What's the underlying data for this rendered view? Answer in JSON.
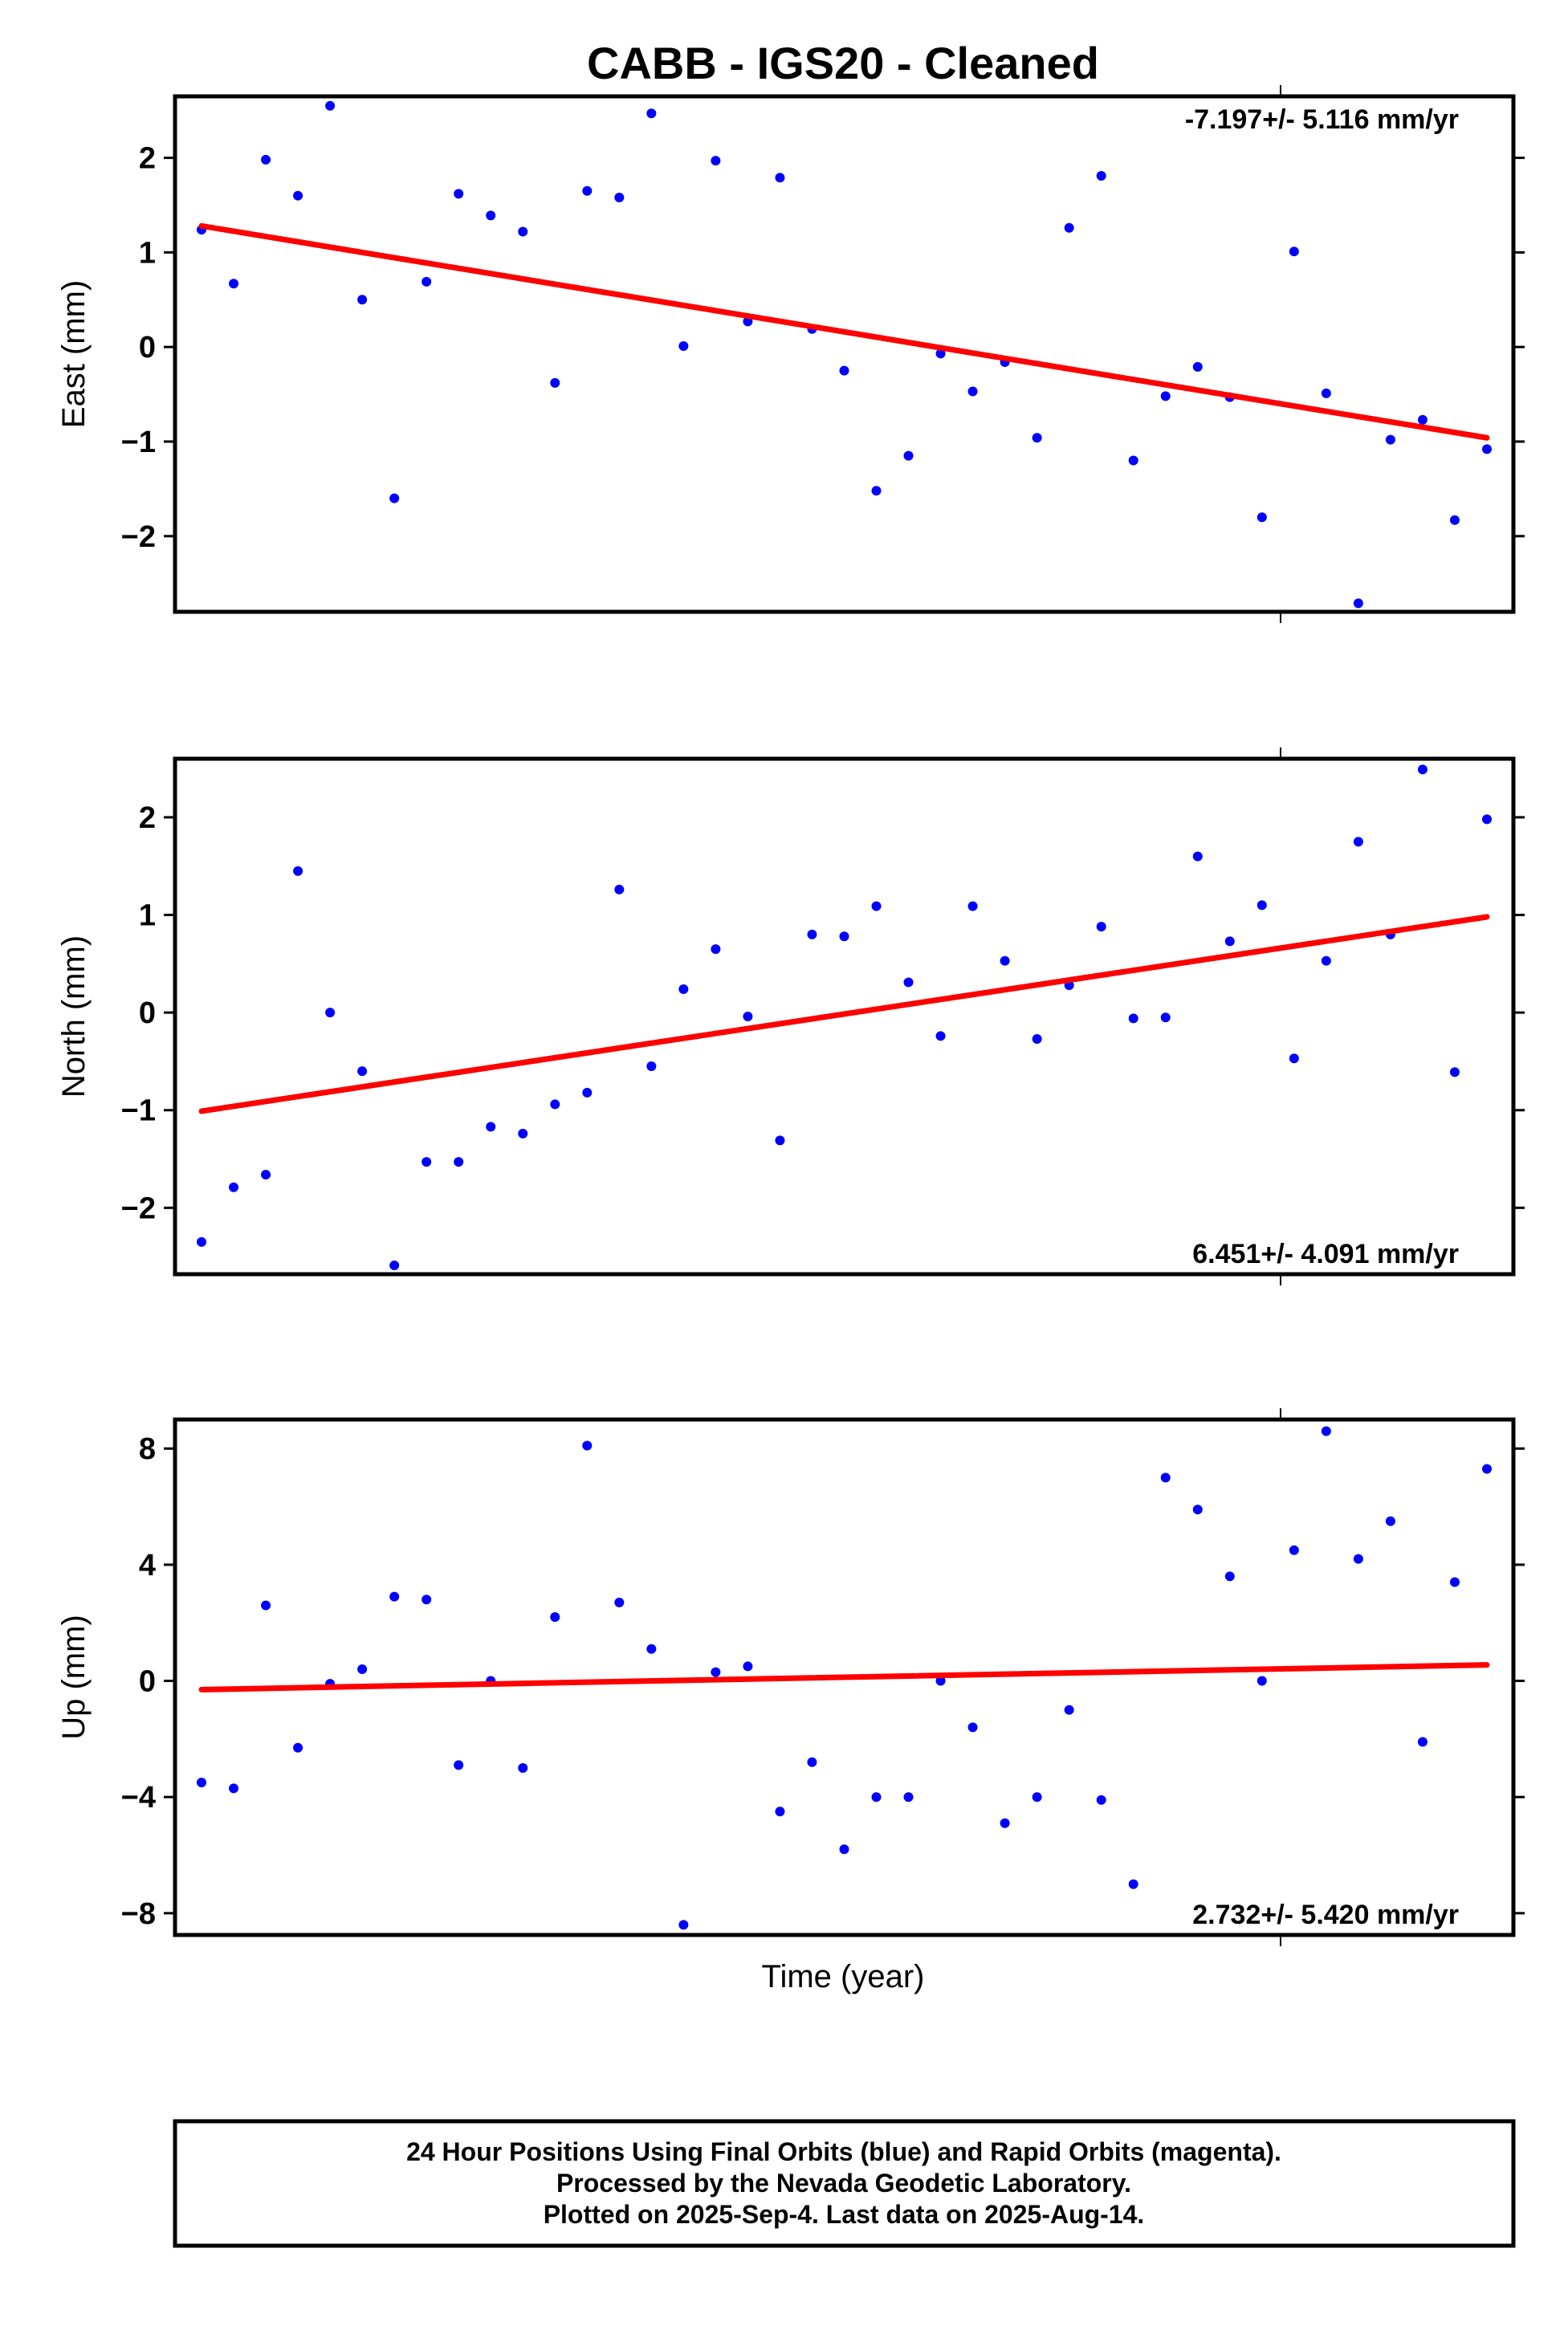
{
  "chart_data": {
    "type": "scatter",
    "title": "CABB  - IGS20 - Cleaned",
    "xlabel": "Time (year)",
    "panels": [
      {
        "key": "east",
        "ylabel": "East (mm)",
        "ylim": [
          -2.8,
          2.65
        ],
        "yticks": [
          2,
          1,
          0,
          -1,
          -2
        ],
        "ytick_labels": [
          "2",
          "1",
          "0",
          "−1",
          "−2"
        ],
        "rate_text": "-7.197+/- 5.116 mm/yr",
        "rate_position": "top-right",
        "trend": {
          "start": 1.28,
          "end": -0.96,
          "color": "#ff0000"
        },
        "points_color": "#0000ff",
        "values": [
          1.24,
          0.67,
          1.98,
          1.6,
          2.55,
          0.5,
          -1.6,
          0.69,
          1.62,
          1.39,
          1.22,
          -0.38,
          1.65,
          1.58,
          2.47,
          0.01,
          1.97,
          0.27,
          1.79,
          0.19,
          -0.25,
          -1.52,
          -1.15,
          -0.07,
          -0.47,
          -0.16,
          -0.96,
          1.26,
          1.81,
          -1.2,
          -0.52,
          -0.21,
          -0.53,
          -1.8,
          1.01,
          -0.49,
          -2.71,
          -0.98,
          -0.77,
          -1.83,
          -1.08
        ]
      },
      {
        "key": "north",
        "ylabel": "North (mm)",
        "ylim": [
          -2.68,
          2.6
        ],
        "yticks": [
          2,
          1,
          0,
          -1,
          -2
        ],
        "ytick_labels": [
          "2",
          "1",
          "0",
          "−1",
          "−2"
        ],
        "rate_text": "6.451+/- 4.091 mm/yr",
        "rate_position": "bottom-right",
        "trend": {
          "start": -1.01,
          "end": 0.98,
          "color": "#ff0000"
        },
        "points_color": "#0000ff",
        "values": [
          -2.35,
          -1.79,
          -1.66,
          1.45,
          0.0,
          -0.6,
          -2.59,
          -1.53,
          -1.53,
          -1.17,
          -1.24,
          -0.94,
          -0.82,
          1.26,
          -0.55,
          0.24,
          0.65,
          -0.04,
          -1.31,
          0.8,
          0.78,
          1.09,
          0.31,
          -0.24,
          1.09,
          0.53,
          -0.27,
          0.28,
          0.88,
          -0.06,
          -0.05,
          1.6,
          0.73,
          1.1,
          -0.47,
          0.53,
          1.75,
          0.8,
          2.49,
          -0.61,
          1.98
        ]
      },
      {
        "key": "up",
        "ylabel": "Up (mm)",
        "ylim": [
          -8.75,
          9.0
        ],
        "yticks": [
          8,
          4,
          0,
          -4,
          -8
        ],
        "ytick_labels": [
          "8",
          "4",
          "0",
          "−4",
          "−8"
        ],
        "rate_text": "2.732+/- 5.420 mm/yr",
        "rate_position": "bottom-right",
        "trend": {
          "start": -0.3,
          "end": 0.55,
          "color": "#ff0000"
        },
        "points_color": "#0000ff",
        "values": [
          -3.5,
          -3.7,
          2.6,
          -2.3,
          -0.1,
          0.4,
          2.9,
          2.8,
          -2.9,
          0.0,
          -3.0,
          2.2,
          8.1,
          2.7,
          1.1,
          -8.4,
          0.3,
          0.5,
          -4.5,
          -2.8,
          -5.8,
          -4.0,
          -4.0,
          0.0,
          -1.6,
          -4.9,
          -4.0,
          -1.0,
          -4.1,
          -7.0,
          7.0,
          5.9,
          3.6,
          0.0,
          4.5,
          8.6,
          4.2,
          5.5,
          -2.1,
          3.4,
          7.3
        ]
      }
    ],
    "footer_lines": [
      "24 Hour Positions Using Final Orbits (blue) and Rapid Orbits (magenta).",
      "Processed by the Nevada Geodetic Laboratory.",
      "Plotted on 2025-Sep-4. Last data on 2025-Aug-14."
    ]
  }
}
